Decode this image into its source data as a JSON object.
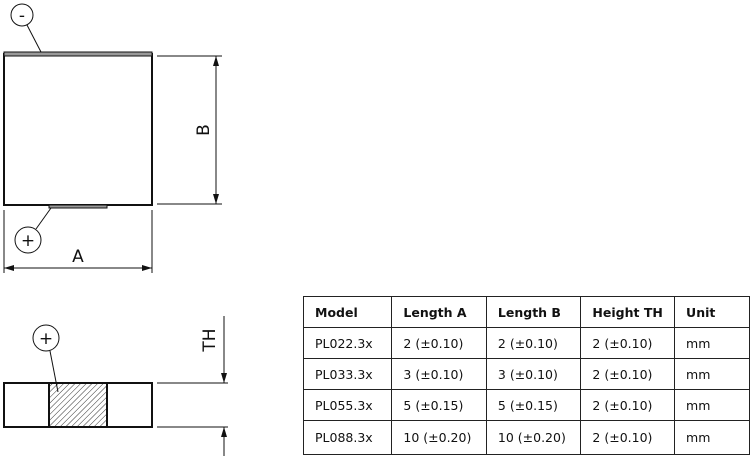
{
  "drawing": {
    "top_view": {
      "negative_terminal": "-",
      "positive_terminal": "+",
      "dim_a_label": "A",
      "dim_b_label": "B"
    },
    "side_view": {
      "positive_terminal": "+",
      "dim_th_label": "TH"
    }
  },
  "table": {
    "headers": [
      "Model",
      "Length A",
      "Length B",
      "Height TH",
      "Unit"
    ],
    "rows": [
      [
        "PL022.3x",
        "2 (±0.10)",
        "2 (±0.10)",
        "2 (±0.10)",
        "mm"
      ],
      [
        "PL033.3x",
        "3 (±0.10)",
        "3 (±0.10)",
        "2 (±0.10)",
        "mm"
      ],
      [
        "PL055.3x",
        "5 (±0.15)",
        "5 (±0.15)",
        "2 (±0.10)",
        "mm"
      ],
      [
        "PL088.3x",
        "10 (±0.20)",
        "10 (±0.20)",
        "2 (±0.10)",
        "mm"
      ]
    ]
  }
}
